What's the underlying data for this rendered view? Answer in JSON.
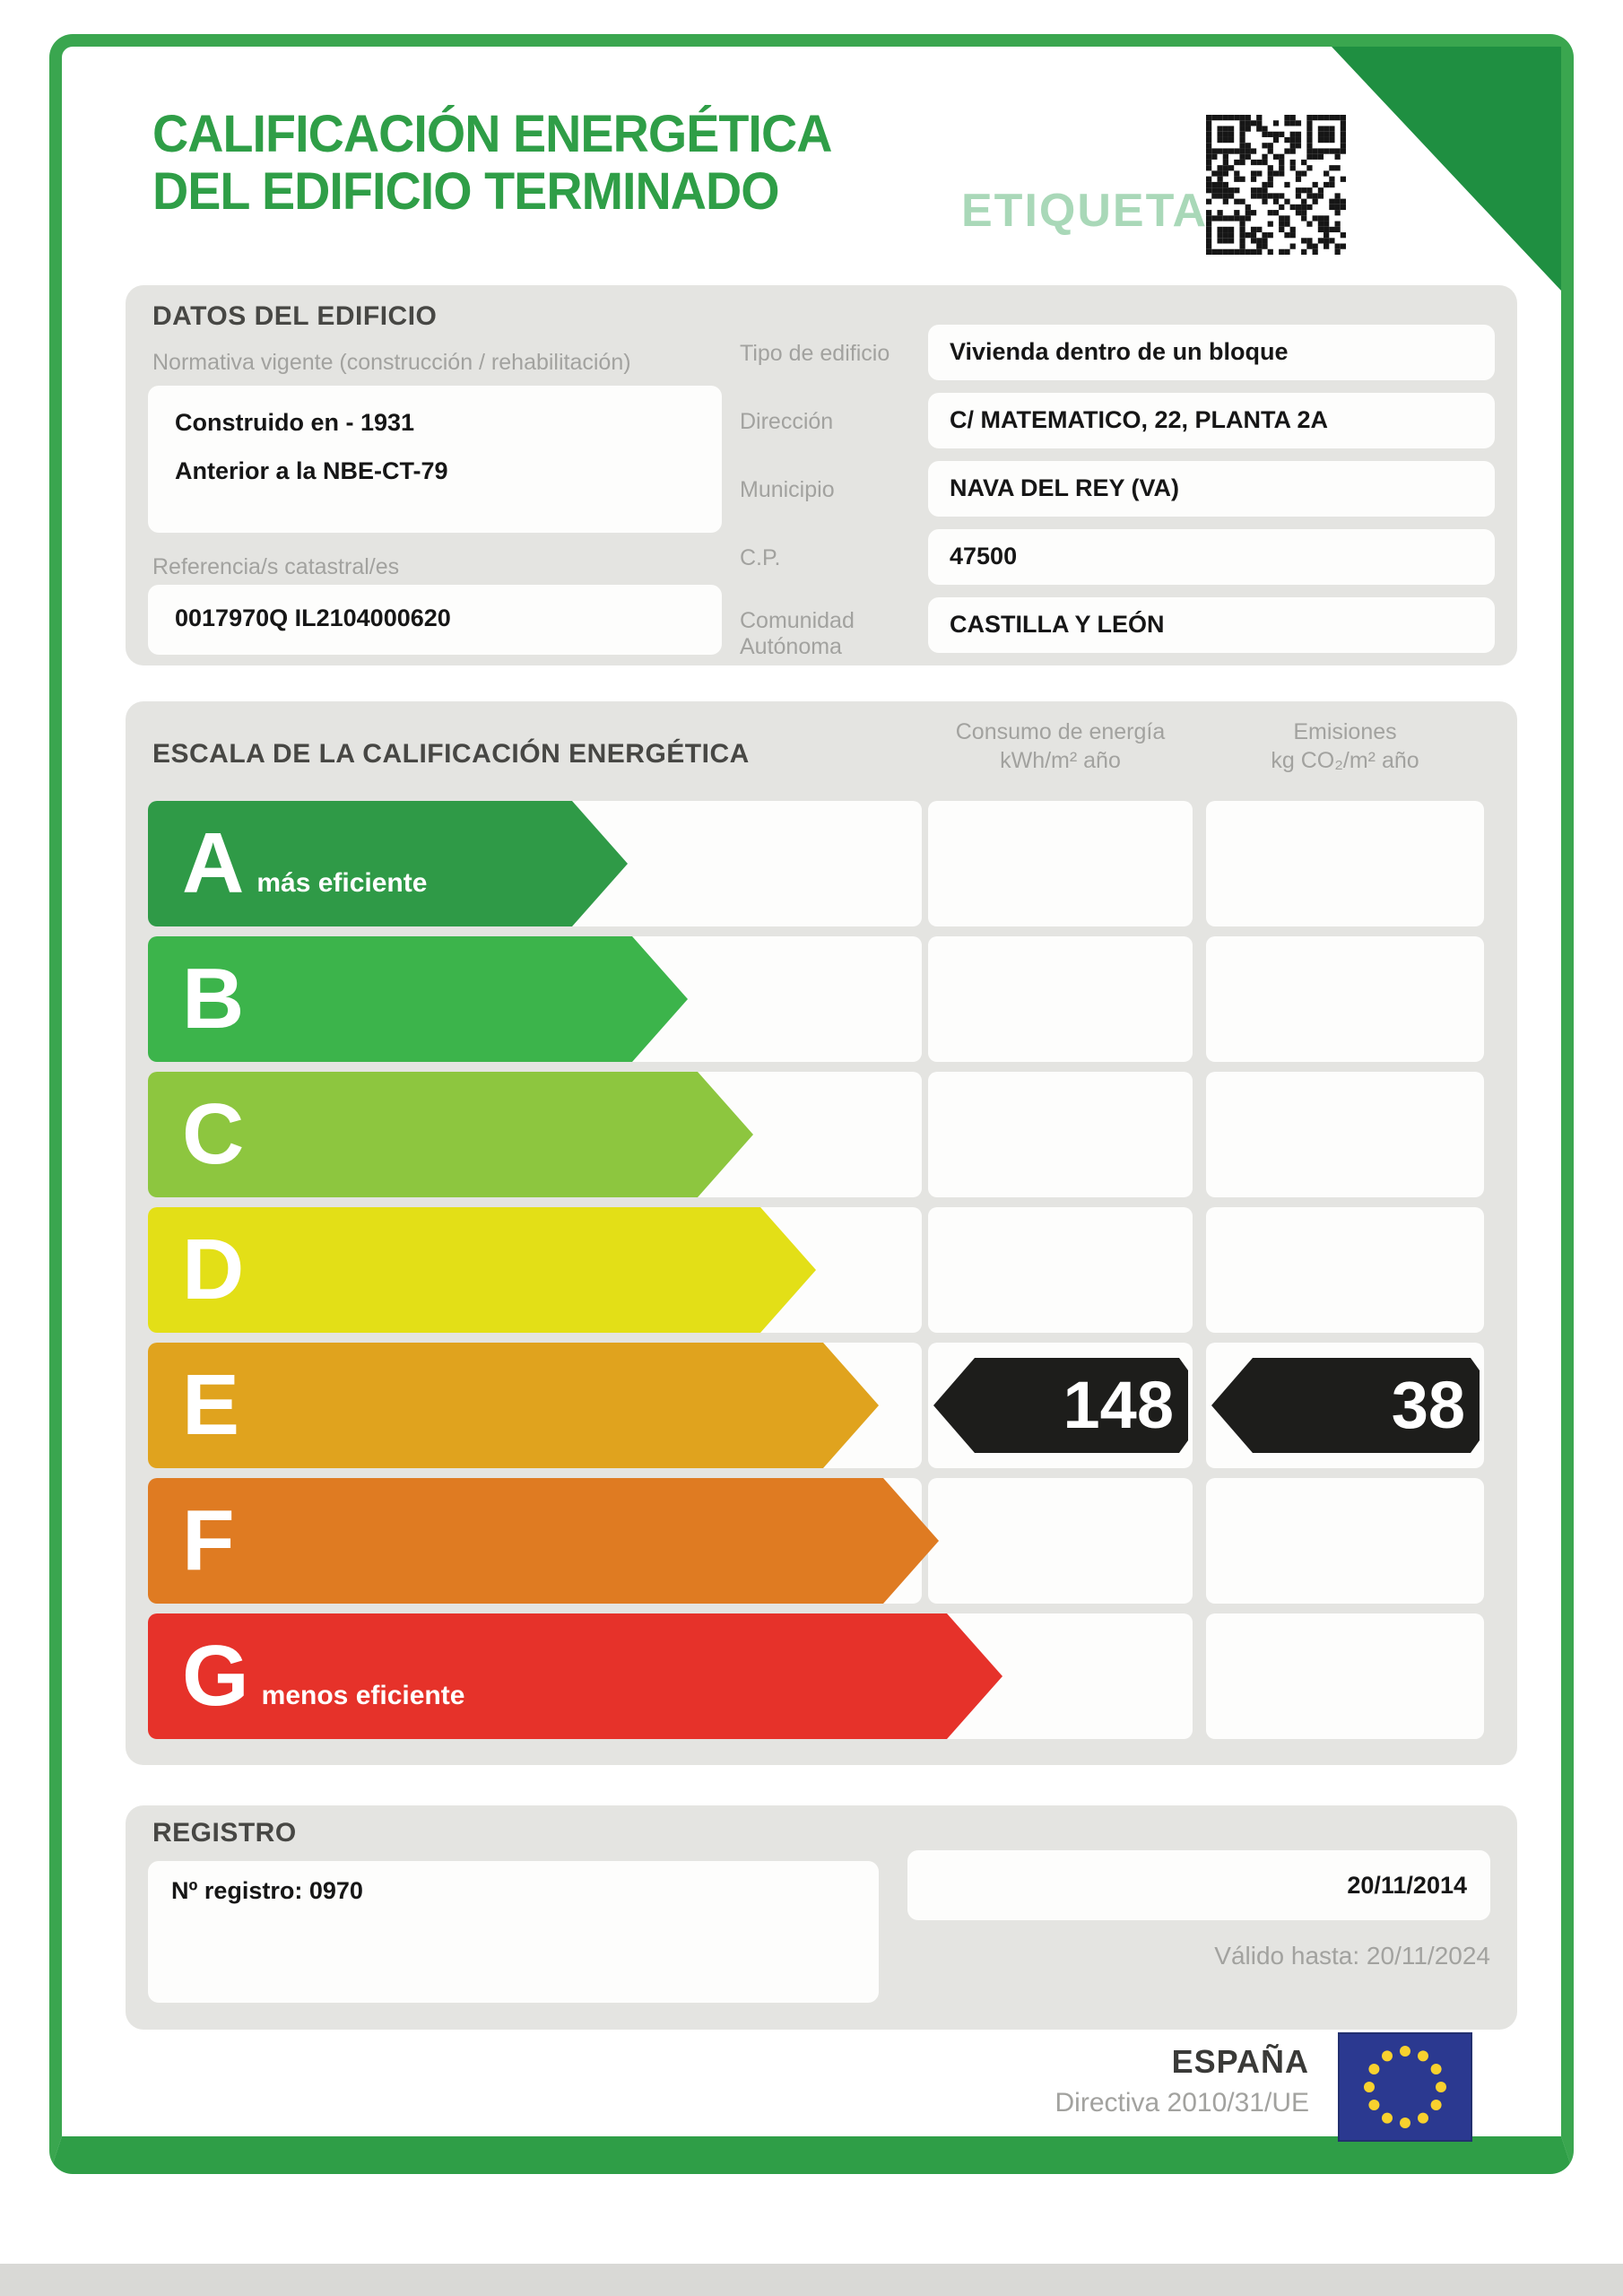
{
  "header": {
    "title_line1": "CALIFICACIÓN ENERGÉTICA",
    "title_line2": "DEL EDIFICIO TERMINADO",
    "etiqueta_label": "ETIQUETA"
  },
  "building": {
    "section_title": "DATOS DEL EDIFICIO",
    "normativa_label": "Normativa vigente (construcción / rehabilitación)",
    "normativa_line1": "Construido en - 1931",
    "normativa_line2": "Anterior a la NBE-CT-79",
    "catastral_label": "Referencia/s catastral/es",
    "catastral_value": "0017970Q IL2104000620",
    "fields": [
      {
        "label": "Tipo de edificio",
        "value": "Vivienda dentro de un bloque"
      },
      {
        "label": "Dirección",
        "value": "C/ MATEMATICO, 22, PLANTA 2A"
      },
      {
        "label": "Municipio",
        "value": "NAVA DEL REY (VA)"
      },
      {
        "label": "C.P.",
        "value": "47500"
      },
      {
        "label": "Comunidad Autónoma",
        "value": "CASTILLA Y LEÓN"
      }
    ]
  },
  "scale": {
    "section_title": "ESCALA DE LA CALIFICACIÓN ENERGÉTICA",
    "consumo_header_line1": "Consumo de energía",
    "consumo_header_line2": "kWh/m² año",
    "emisiones_header_line1": "Emisiones",
    "emisiones_header_line2": "kg CO₂/m² año",
    "rows": [
      {
        "letter": "A",
        "caption": "más eficiente",
        "color": "#2f9a47"
      },
      {
        "letter": "B",
        "caption": "",
        "color": "#3cb44b"
      },
      {
        "letter": "C",
        "caption": "",
        "color": "#8dc63f"
      },
      {
        "letter": "D",
        "caption": "",
        "color": "#e3df17"
      },
      {
        "letter": "E",
        "caption": "",
        "color": "#e0a31e"
      },
      {
        "letter": "F",
        "caption": "",
        "color": "#df7b22"
      },
      {
        "letter": "G",
        "caption": "menos eficiente",
        "color": "#e6322a"
      }
    ],
    "rating": {
      "letter": "E",
      "consumo_value": "148",
      "emisiones_value": "38"
    }
  },
  "registro": {
    "section_title": "REGISTRO",
    "registry_code": "Nº registro: 0970",
    "registry_date": "20/11/2014",
    "valid_until": "Válido hasta: 20/11/2024"
  },
  "footer": {
    "country": "ESPAÑA",
    "directive": "Directiva 2010/31/UE"
  }
}
